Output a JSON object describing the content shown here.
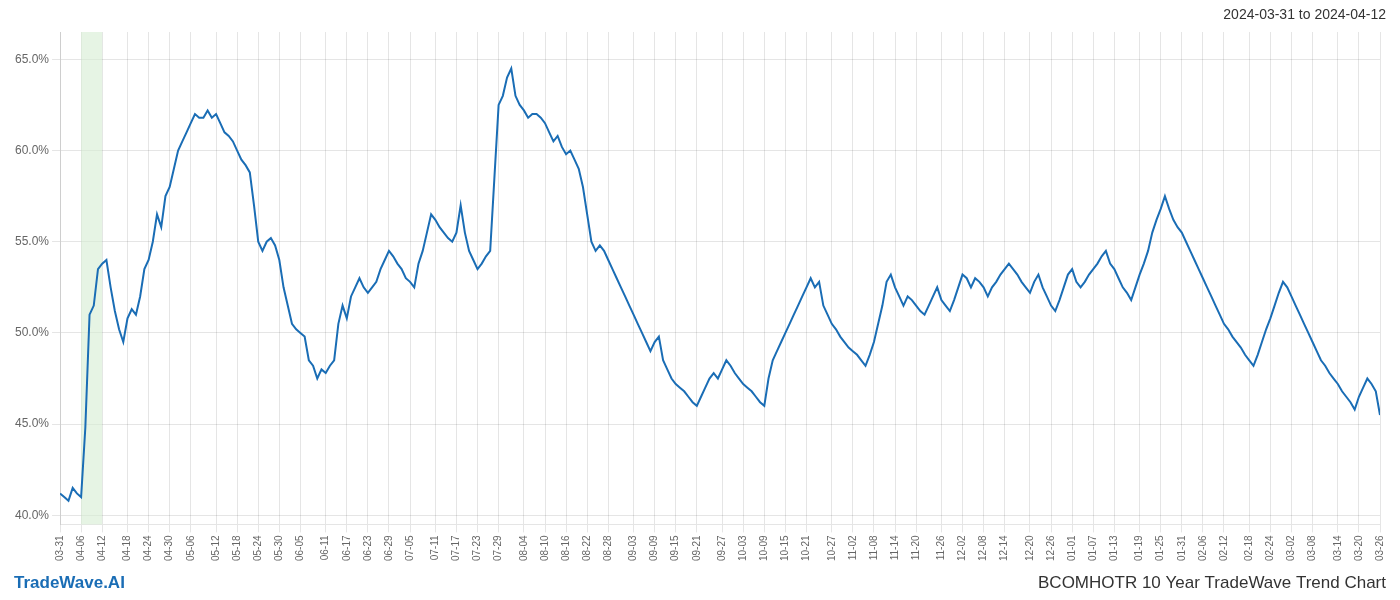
{
  "chart_data": {
    "type": "line",
    "title": "BCOMHOTR 10 Year TradeWave Trend Chart",
    "annotations": [
      "2024-03-31 to 2024-04-12",
      "TradeWave.AI"
    ],
    "categories": [
      "03-31",
      null,
      null,
      null,
      null,
      "04-06",
      null,
      null,
      null,
      null,
      "04-12",
      null,
      null,
      null,
      null,
      null,
      "04-18",
      null,
      null,
      null,
      null,
      "04-24",
      null,
      null,
      null,
      null,
      "04-30",
      null,
      null,
      null,
      null,
      "05-06",
      null,
      null,
      null,
      null,
      null,
      "05-12",
      null,
      null,
      null,
      null,
      "05-18",
      null,
      null,
      null,
      null,
      "05-24",
      null,
      null,
      null,
      null,
      "05-30",
      null,
      null,
      null,
      null,
      "06-05",
      null,
      null,
      null,
      null,
      null,
      "06-11",
      null,
      null,
      null,
      null,
      "06-17",
      null,
      null,
      null,
      null,
      "06-23",
      null,
      null,
      null,
      null,
      "06-29",
      null,
      null,
      null,
      null,
      "07-05",
      null,
      null,
      null,
      null,
      null,
      "07-11",
      null,
      null,
      null,
      null,
      "07-17",
      null,
      null,
      null,
      null,
      "07-23",
      null,
      null,
      null,
      null,
      "07-29",
      null,
      null,
      null,
      null,
      null,
      "08-04",
      null,
      null,
      null,
      null,
      "08-10",
      null,
      null,
      null,
      null,
      "08-16",
      null,
      null,
      null,
      null,
      "08-22",
      null,
      null,
      null,
      null,
      "08-28",
      null,
      null,
      null,
      null,
      null,
      "09-03",
      null,
      null,
      null,
      null,
      "09-09",
      null,
      null,
      null,
      null,
      "09-15",
      null,
      null,
      null,
      null,
      "09-21",
      null,
      null,
      null,
      null,
      null,
      "09-27",
      null,
      null,
      null,
      null,
      "10-03",
      null,
      null,
      null,
      null,
      "10-09",
      null,
      null,
      null,
      null,
      "10-15",
      null,
      null,
      null,
      null,
      "10-21",
      null,
      null,
      null,
      null,
      null,
      "10-27",
      null,
      null,
      null,
      null,
      "11-02",
      null,
      null,
      null,
      null,
      "11-08",
      null,
      null,
      null,
      null,
      "11-14",
      null,
      null,
      null,
      null,
      "11-20",
      null,
      null,
      null,
      null,
      null,
      "11-26",
      null,
      null,
      null,
      null,
      "12-02",
      null,
      null,
      null,
      null,
      "12-08",
      null,
      null,
      null,
      null,
      "12-14",
      null,
      null,
      null,
      null,
      null,
      "12-20",
      null,
      null,
      null,
      null,
      "12-26",
      null,
      null,
      null,
      null,
      "01-01",
      null,
      null,
      null,
      null,
      "01-07",
      null,
      null,
      null,
      null,
      "01-13",
      null,
      null,
      null,
      null,
      null,
      "01-19",
      null,
      null,
      null,
      null,
      "01-25",
      null,
      null,
      null,
      null,
      "01-31",
      null,
      null,
      null,
      null,
      "02-06",
      null,
      null,
      null,
      null,
      "02-12",
      null,
      null,
      null,
      null,
      null,
      "02-18",
      null,
      null,
      null,
      null,
      "02-24",
      null,
      null,
      null,
      null,
      "03-02",
      null,
      null,
      null,
      null,
      "03-08",
      null,
      null,
      null,
      null,
      null,
      "03-14",
      null,
      null,
      null,
      null,
      "03-20",
      null,
      null,
      null,
      null,
      "03-26"
    ],
    "values": [
      41.2,
      41.0,
      40.8,
      41.5,
      41.2,
      41.0,
      44.8,
      51.0,
      51.5,
      53.5,
      53.8,
      54.0,
      52.5,
      51.2,
      50.2,
      49.5,
      50.8,
      51.3,
      51.0,
      52.0,
      53.5,
      54.0,
      55.0,
      56.5,
      55.8,
      57.5,
      58.0,
      59.0,
      60.0,
      60.5,
      61.0,
      61.5,
      62.0,
      61.8,
      61.8,
      62.2,
      61.8,
      62.0,
      61.5,
      61.0,
      60.8,
      60.5,
      60.0,
      59.5,
      59.2,
      58.8,
      57.0,
      55.0,
      54.5,
      55.0,
      55.2,
      54.8,
      54.0,
      52.5,
      51.5,
      50.5,
      50.2,
      50.0,
      49.8,
      48.5,
      48.2,
      47.5,
      48.0,
      47.8,
      48.2,
      48.5,
      50.5,
      51.5,
      50.8,
      52.0,
      52.5,
      53.0,
      52.5,
      52.2,
      52.5,
      52.8,
      53.5,
      54.0,
      54.5,
      54.2,
      53.8,
      53.5,
      53.0,
      52.8,
      52.5,
      53.8,
      54.5,
      55.5,
      56.5,
      56.2,
      55.8,
      55.5,
      55.2,
      55.0,
      55.5,
      57.0,
      55.5,
      54.5,
      54.0,
      53.5,
      53.8,
      54.2,
      54.5,
      58.5,
      62.5,
      63.0,
      64.0,
      64.5,
      63.0,
      62.5,
      62.2,
      61.8,
      62.0,
      62.0,
      61.8,
      61.5,
      61.0,
      60.5,
      60.8,
      60.2,
      59.8,
      60.0,
      59.5,
      59.0,
      58.0,
      56.5,
      55.0,
      54.5,
      54.8,
      54.5,
      54.0,
      53.5,
      53.0,
      52.5,
      52.0,
      51.5,
      51.0,
      50.5,
      50.0,
      49.5,
      49.0,
      49.5,
      49.8,
      48.5,
      48.0,
      47.5,
      47.2,
      47.0,
      46.8,
      46.5,
      46.2,
      46.0,
      46.5,
      47.0,
      47.5,
      47.8,
      47.5,
      48.0,
      48.5,
      48.2,
      47.8,
      47.5,
      47.2,
      47.0,
      46.8,
      46.5,
      46.2,
      46.0,
      47.5,
      48.5,
      49.0,
      49.5,
      50.0,
      50.5,
      51.0,
      51.5,
      52.0,
      52.5,
      53.0,
      52.5,
      52.8,
      51.5,
      51.0,
      50.5,
      50.2,
      49.8,
      49.5,
      49.2,
      49.0,
      48.8,
      48.5,
      48.2,
      48.8,
      49.5,
      50.5,
      51.5,
      52.8,
      53.2,
      52.5,
      52.0,
      51.5,
      52.0,
      51.8,
      51.5,
      51.2,
      51.0,
      51.5,
      52.0,
      52.5,
      51.8,
      51.5,
      51.2,
      51.8,
      52.5,
      53.2,
      53.0,
      52.5,
      53.0,
      52.8,
      52.5,
      52.0,
      52.5,
      52.8,
      53.2,
      53.5,
      53.8,
      53.5,
      53.2,
      52.8,
      52.5,
      52.2,
      52.8,
      53.2,
      52.5,
      52.0,
      51.5,
      51.2,
      51.8,
      52.5,
      53.2,
      53.5,
      52.8,
      52.5,
      52.8,
      53.2,
      53.5,
      53.8,
      54.2,
      54.5,
      53.8,
      53.5,
      53.0,
      52.5,
      52.2,
      51.8,
      52.5,
      53.2,
      53.8,
      54.5,
      55.5,
      56.2,
      56.8,
      57.5,
      56.8,
      56.2,
      55.8,
      55.5,
      55.0,
      54.5,
      54.0,
      53.5,
      53.0,
      52.5,
      52.0,
      51.5,
      51.0,
      50.5,
      50.2,
      49.8,
      49.5,
      49.2,
      48.8,
      48.5,
      48.2,
      48.8,
      49.5,
      50.2,
      50.8,
      51.5,
      52.2,
      52.8,
      52.5,
      52.0,
      51.5,
      51.0,
      50.5,
      50.0,
      49.5,
      49.0,
      48.5,
      48.2,
      47.8,
      47.5,
      47.2,
      46.8,
      46.5,
      46.2,
      45.8,
      46.5,
      47.0,
      47.5,
      47.2,
      46.8,
      45.5
    ],
    "color": "#1a6db5",
    "ylim": [
      39.5,
      66.5
    ],
    "yticks": [
      {
        "value": 40.0,
        "label": "40.0%"
      },
      {
        "value": 45.0,
        "label": "45.0%"
      },
      {
        "value": 50.0,
        "label": "50.0%"
      },
      {
        "value": 55.0,
        "label": "55.0%"
      },
      {
        "value": 60.0,
        "label": "60.0%"
      },
      {
        "value": 65.0,
        "label": "65.0%"
      }
    ],
    "grid": true,
    "highlight": {
      "from": "04-06",
      "to": "04-12",
      "color": "#d6ecd2"
    }
  }
}
